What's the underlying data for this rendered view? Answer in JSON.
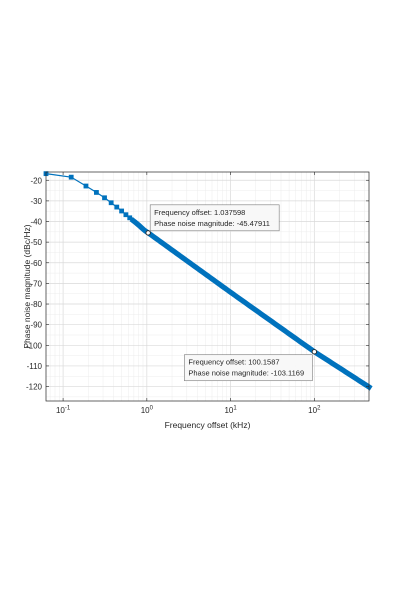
{
  "chart_data": {
    "type": "line",
    "xlabel": "Frequency offset (kHz)",
    "ylabel": "Phase noise magnitude (dBc/Hz)",
    "x_scale": "log",
    "xlim": [
      0.0625,
      450
    ],
    "ylim": [
      -127,
      -16
    ],
    "grid": true,
    "minor_grid": true,
    "color": "#0072BD",
    "x_ticks": [
      {
        "value": 0.1,
        "base": "10",
        "exp": "-1"
      },
      {
        "value": 1,
        "base": "10",
        "exp": "0"
      },
      {
        "value": 10,
        "base": "10",
        "exp": "1"
      },
      {
        "value": 100,
        "base": "10",
        "exp": "2"
      }
    ],
    "y_ticks": [
      -20,
      -30,
      -40,
      -50,
      -60,
      -70,
      -80,
      -90,
      -100,
      -110,
      -120
    ],
    "y_tick_labels": [
      "-20",
      "-30",
      "-40",
      "-50",
      "-60",
      "-70",
      "-80",
      "-90",
      "-100",
      "-110",
      "-120"
    ],
    "series": [
      {
        "marker": "square",
        "x_start_kHz": 0.0625,
        "x_step_kHz": 0.0625,
        "x_end_kHz": 450,
        "points": [
          [
            0.0625,
            -16.8
          ],
          [
            0.125,
            -18.5
          ],
          [
            0.1875,
            -22.8
          ],
          [
            0.25,
            -25.9
          ],
          [
            0.3125,
            -28.5
          ],
          [
            0.375,
            -30.9
          ],
          [
            0.4375,
            -33.0
          ],
          [
            0.5,
            -34.9
          ],
          [
            0.5625,
            -36.7
          ],
          [
            0.625,
            -38.2
          ],
          [
            0.6875,
            -39.6
          ],
          [
            0.75,
            -40.8
          ],
          [
            0.8125,
            -42.0
          ],
          [
            0.875,
            -43.2
          ],
          [
            0.9375,
            -44.3
          ],
          [
            1.037598,
            -45.47911
          ],
          [
            10,
            -74.3
          ],
          [
            100.1587,
            -103.1169
          ],
          [
            450,
            -120.2
          ]
        ]
      }
    ],
    "datatips": [
      {
        "x": 1.037598,
        "y": -45.47911,
        "line1": "Frequency offset: 1.037598",
        "line2": "Phase noise magnitude: -45.47911"
      },
      {
        "x": 100.1587,
        "y": -103.1169,
        "line1": "Frequency offset: 100.1587",
        "line2": "Phase noise magnitude: -103.1169"
      }
    ]
  }
}
